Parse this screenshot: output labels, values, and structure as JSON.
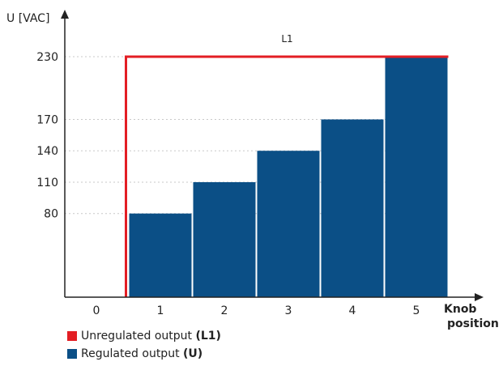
{
  "chart_data": {
    "type": "bar",
    "ylabel": "U [VAC]",
    "xlabel_line1": "Knob",
    "xlabel_line2": "position",
    "categories": [
      "0",
      "1",
      "2",
      "3",
      "4",
      "5"
    ],
    "y_ticks": [
      80,
      110,
      140,
      170,
      230
    ],
    "ylim": [
      0,
      255
    ],
    "grid": "horizontal-dotted",
    "series": [
      {
        "name": "Regulated output (U)",
        "kind": "bar",
        "color": "#0b4f86",
        "values": [
          null,
          80,
          110,
          140,
          170,
          230
        ]
      },
      {
        "name": "Unregulated output (L1)",
        "kind": "step-line",
        "color": "#e31e24",
        "level": 230,
        "starts_at": "1",
        "label": "L1"
      }
    ],
    "legend_placement": "bottom-left"
  },
  "legend": {
    "items": [
      {
        "text": "Unregulated output ",
        "bold": "(L1)",
        "color": "#e31e24"
      },
      {
        "text": "Regulated output ",
        "bold": "(U)",
        "color": "#0b4f86"
      }
    ]
  }
}
